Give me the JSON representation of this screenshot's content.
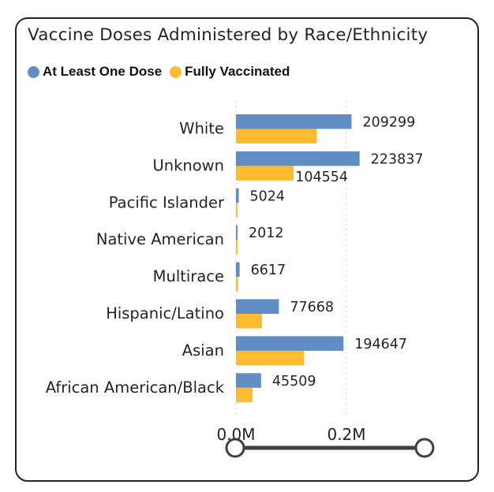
{
  "chart_data": {
    "type": "bar",
    "orientation": "horizontal",
    "title": "Vaccine Doses Administered by Race/Ethnicity",
    "categories": [
      "White",
      "Unknown",
      "Pacific Islander",
      "Native American",
      "Multirace",
      "Hispanic/Latino",
      "Asian",
      "African American/Black"
    ],
    "series": [
      {
        "name": "At Least One Dose",
        "color": "#5F8DC4",
        "values": [
          209299,
          223837,
          5024,
          2012,
          6617,
          77668,
          194647,
          45509
        ]
      },
      {
        "name": "Fully Vaccinated",
        "color": "#FDBB30",
        "values": [
          146000,
          104554,
          2400,
          1300,
          3900,
          47000,
          123000,
          30000
        ]
      }
    ],
    "data_labels": {
      "At Least One Dose": [
        "209299",
        "223837",
        "5024",
        "2012",
        "6617",
        "77668",
        "194647",
        "45509"
      ],
      "Fully Vaccinated": [
        "",
        "104554",
        "",
        "",
        "",
        "",
        "",
        ""
      ]
    },
    "x_ticks": [
      0,
      200000
    ],
    "x_tick_labels": [
      "0.0M",
      "0.2M"
    ],
    "xlim": [
      0,
      240000
    ],
    "grid": true,
    "legend_position": "top-left"
  },
  "slider": {
    "range": [
      0,
      1
    ]
  }
}
